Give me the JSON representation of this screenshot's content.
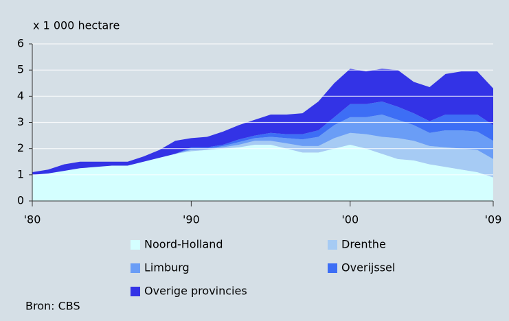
{
  "chart_data": {
    "type": "stacked_area",
    "ylabel": "x 1 000 hectare",
    "source": "Bron: CBS",
    "x": [
      1980,
      1981,
      1982,
      1983,
      1984,
      1985,
      1986,
      1987,
      1988,
      1989,
      1990,
      1991,
      1992,
      1993,
      1994,
      1995,
      1996,
      1997,
      1998,
      1999,
      2000,
      2001,
      2002,
      2003,
      2004,
      2005,
      2006,
      2007,
      2008,
      2009
    ],
    "series": [
      {
        "name": "Noord-Holland",
        "color": "#d4ffff",
        "values": [
          1.0,
          1.05,
          1.15,
          1.25,
          1.3,
          1.35,
          1.35,
          1.5,
          1.65,
          1.8,
          1.9,
          1.95,
          2.0,
          2.05,
          2.15,
          2.15,
          2.0,
          1.85,
          1.85,
          2.0,
          2.15,
          2.0,
          1.8,
          1.6,
          1.55,
          1.4,
          1.3,
          1.2,
          1.1,
          0.9
        ]
      },
      {
        "name": "Drenthe",
        "color": "#a6cbf4",
        "values": [
          0,
          0,
          0,
          0,
          0,
          0,
          0,
          0,
          0,
          0,
          0.05,
          0.02,
          0.05,
          0.1,
          0.15,
          0.15,
          0.2,
          0.25,
          0.25,
          0.4,
          0.45,
          0.55,
          0.65,
          0.8,
          0.75,
          0.7,
          0.75,
          0.8,
          0.85,
          0.7
        ]
      },
      {
        "name": "Limburg",
        "color": "#6a9df6",
        "values": [
          0,
          0,
          0,
          0,
          0,
          0,
          0,
          0,
          0,
          0,
          0.05,
          0.03,
          0.05,
          0.1,
          0.1,
          0.15,
          0.2,
          0.25,
          0.35,
          0.5,
          0.6,
          0.65,
          0.85,
          0.7,
          0.6,
          0.5,
          0.65,
          0.7,
          0.7,
          0.7
        ]
      },
      {
        "name": "Overijssel",
        "color": "#3d6ef5",
        "values": [
          0,
          0,
          0,
          0,
          0,
          0,
          0,
          0,
          0,
          0,
          0.05,
          0.05,
          0.05,
          0.1,
          0.1,
          0.15,
          0.15,
          0.2,
          0.25,
          0.3,
          0.5,
          0.5,
          0.5,
          0.5,
          0.45,
          0.45,
          0.6,
          0.6,
          0.65,
          0.6
        ]
      },
      {
        "name": "Overige provincies",
        "color": "#3333e6",
        "values": [
          0.1,
          0.15,
          0.25,
          0.25,
          0.2,
          0.15,
          0.15,
          0.2,
          0.3,
          0.5,
          0.35,
          0.4,
          0.5,
          0.55,
          0.6,
          0.7,
          0.75,
          0.8,
          1.1,
          1.3,
          1.35,
          1.25,
          1.25,
          1.4,
          1.2,
          1.3,
          1.55,
          1.65,
          1.65,
          1.4
        ]
      }
    ],
    "xlim": [
      1980,
      2009
    ],
    "xticks": [
      {
        "value": 1980,
        "label": "'80"
      },
      {
        "value": 1990,
        "label": "'90"
      },
      {
        "value": 2000,
        "label": "'00"
      },
      {
        "value": 2009,
        "label": "'09"
      }
    ],
    "ylim": [
      0,
      6
    ],
    "yticks": [
      0,
      1,
      2,
      3,
      4,
      5,
      6
    ],
    "grid": true
  }
}
